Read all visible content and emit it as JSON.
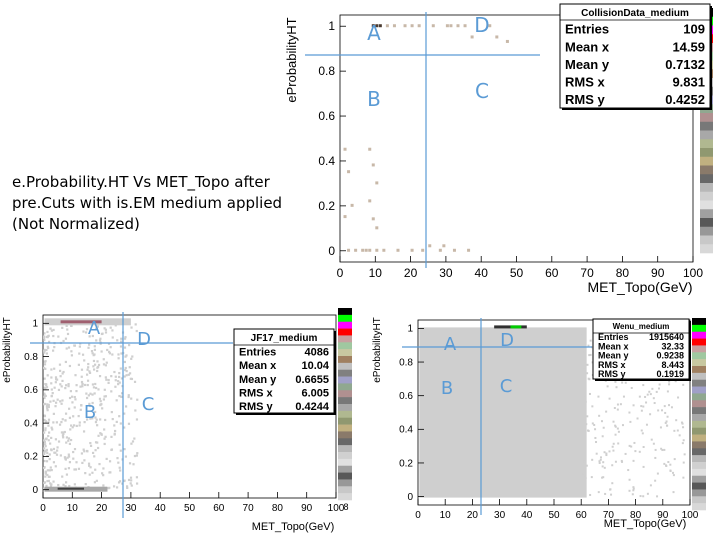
{
  "description": "e.Probability.HT Vs MET_Topo after pre.Cuts with is.EM medium applied (Not Normalized)",
  "colors": {
    "cut_line": "#5b9bd5",
    "region_label": "#5b9bd5",
    "fill_gray": "#cfcfcf"
  },
  "chart_data": [
    {
      "type": "heatmap",
      "stats_title": "CollisionData_medium",
      "xlabel": "MET_Topo(GeV)",
      "ylabel": "eProbabilityHT",
      "xlim": [
        0,
        100
      ],
      "ylim": [
        -0.05,
        1.05
      ],
      "xticks": [
        "0",
        "10",
        "20",
        "30",
        "40",
        "50",
        "60",
        "70",
        "80",
        "90",
        "100"
      ],
      "yticks": [
        "0",
        "0.2",
        "0.4",
        "0.6",
        "0.8",
        "1"
      ],
      "stats": [
        {
          "label": "Entries",
          "value": "109"
        },
        {
          "label": "Mean x",
          "value": "14.59"
        },
        {
          "label": "Mean y",
          "value": "0.7132"
        },
        {
          "label": "RMS x",
          "value": "9.831"
        },
        {
          "label": "RMS y",
          "value": "0.4252"
        }
      ],
      "cuts": {
        "x": 25,
        "y": 0.9
      },
      "regions": [
        "A",
        "B",
        "C",
        "D"
      ]
    },
    {
      "type": "heatmap",
      "stats_title": "JF17_medium",
      "xlabel": "MET_Topo(GeV)",
      "ylabel": "eProbabilityHT",
      "xlim": [
        0,
        100
      ],
      "ylim": [
        -0.05,
        1.05
      ],
      "xticks": [
        "0",
        "10",
        "20",
        "30",
        "40",
        "50",
        "60",
        "70",
        "80",
        "90",
        "100"
      ],
      "yticks": [
        "0",
        "0.2",
        "0.4",
        "0.6",
        "0.8",
        "1"
      ],
      "stats": [
        {
          "label": "Entries",
          "value": "4086"
        },
        {
          "label": "Mean x",
          "value": "10.04"
        },
        {
          "label": "Mean y",
          "value": "0.6655"
        },
        {
          "label": "RMS x",
          "value": "6.005"
        },
        {
          "label": "RMS y",
          "value": "0.4244"
        }
      ],
      "cuts": {
        "x": 25,
        "y": 0.9
      },
      "regions": [
        "A",
        "B",
        "C",
        "D"
      ],
      "palette_note": "8"
    },
    {
      "type": "heatmap",
      "stats_title": "Wenu_medium",
      "xlabel": "MET_Topo(GeV)",
      "ylabel": "eProbabilityHT",
      "xlim": [
        0,
        100
      ],
      "ylim": [
        -0.05,
        1.05
      ],
      "xticks": [
        "0",
        "10",
        "20",
        "30",
        "40",
        "50",
        "60",
        "70",
        "80",
        "90",
        "100"
      ],
      "yticks": [
        "0",
        "0.2",
        "0.4",
        "0.6",
        "0.8",
        "1"
      ],
      "stats": [
        {
          "label": "Entries",
          "value": "1915640"
        },
        {
          "label": "Mean x",
          "value": "32.33"
        },
        {
          "label": "Mean y",
          "value": "0.9238"
        },
        {
          "label": "RMS x",
          "value": "8.443"
        },
        {
          "label": "RMS y",
          "value": "0.1919"
        }
      ],
      "cuts": {
        "x": 25,
        "y": 0.9
      },
      "regions": [
        "A",
        "B",
        "C",
        "D"
      ]
    }
  ]
}
